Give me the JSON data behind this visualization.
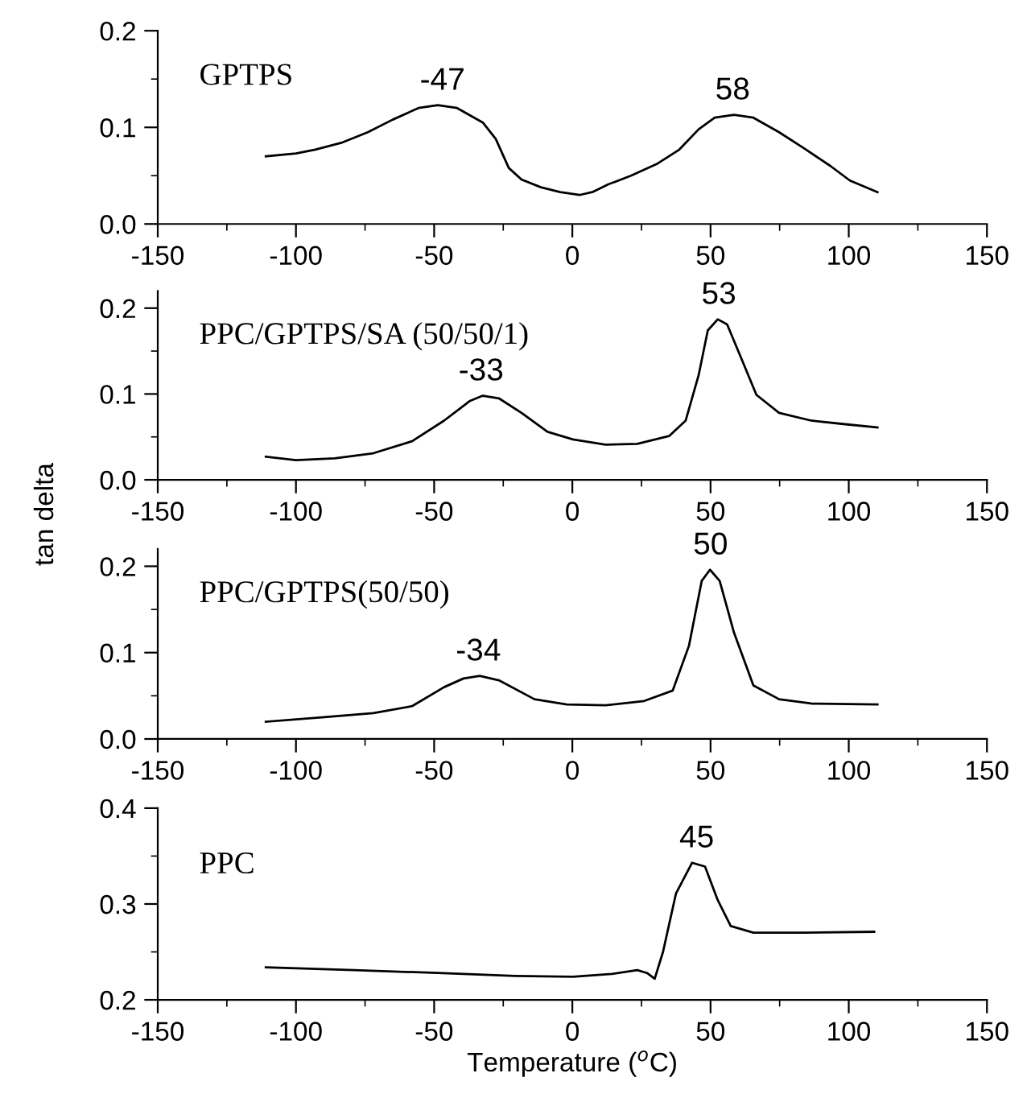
{
  "chart_data": [
    {
      "type": "line",
      "xlim": [
        -150,
        150
      ],
      "ylim": [
        0,
        0.2
      ],
      "xticks": [
        -150,
        {
          "value": -125,
          "label": null
        },
        -100,
        {
          "value": -75,
          "label": null
        },
        -50,
        {
          "value": -25,
          "label": null
        },
        0,
        {
          "value": 25,
          "label": null
        },
        50,
        {
          "value": 75,
          "label": null
        },
        100,
        {
          "value": 125,
          "label": null
        },
        150
      ],
      "yticks": [
        {
          "value": 0,
          "label": "0.0"
        },
        {
          "value": 0.05,
          "label": null
        },
        0.1,
        {
          "value": 0.15,
          "label": null
        },
        0.2
      ],
      "grid": false,
      "legend": false,
      "marker": "none",
      "line_style": "solid",
      "series": [
        {
          "name": "GPTPS",
          "color": "#000000",
          "x": [
            -110.9,
            -100,
            -93,
            -83.6,
            -74,
            -65,
            -55.7,
            -48.7,
            -41.7,
            -32.4,
            -27.7,
            -23,
            -18.4,
            -11.4,
            -4.4,
            2.6,
            7.2,
            13,
            21.2,
            30.5,
            38.7,
            45.7,
            51.5,
            58.5,
            65.5,
            74.8,
            84,
            93.4,
            100.4,
            110.4
          ],
          "values": [
            0.07,
            0.073,
            0.077,
            0.084,
            0.095,
            0.108,
            0.12,
            0.123,
            0.12,
            0.105,
            0.088,
            0.058,
            0.046,
            0.038,
            0.033,
            0.03,
            0.033,
            0.041,
            0.05,
            0.062,
            0.077,
            0.098,
            0.11,
            0.113,
            0.11,
            0.095,
            0.078,
            0.06,
            0.045,
            0.033
          ]
        }
      ],
      "annotations": [
        {
          "text": "-47",
          "x": -47,
          "y": 0.123
        },
        {
          "text": "58",
          "x": 58,
          "y": 0.113
        }
      ]
    },
    {
      "type": "line",
      "xlim": [
        -150,
        150
      ],
      "ylim": [
        0,
        0.22
      ],
      "xticks": [
        -150,
        {
          "value": -125,
          "label": null
        },
        -100,
        {
          "value": -75,
          "label": null
        },
        -50,
        {
          "value": -25,
          "label": null
        },
        0,
        {
          "value": 25,
          "label": null
        },
        50,
        {
          "value": 75,
          "label": null
        },
        100,
        {
          "value": 125,
          "label": null
        },
        150
      ],
      "yticks": [
        {
          "value": 0,
          "label": "0.0"
        },
        {
          "value": 0.05,
          "label": null
        },
        0.1,
        {
          "value": 0.15,
          "label": null
        },
        0.2
      ],
      "ylabel": "tan delta",
      "grid": false,
      "legend": false,
      "marker": "none",
      "line_style": "solid",
      "series": [
        {
          "name": "PPC/GPTPS/SA (50/50/1)",
          "color": "#000000",
          "x": [
            -110.9,
            -100,
            -86,
            -72,
            -58,
            -46.4,
            -37,
            -32.4,
            -26.6,
            -18.4,
            -9,
            0.2,
            12,
            23.5,
            35,
            41,
            45.7,
            49,
            52.6,
            56,
            60.8,
            66.6,
            74.8,
            86.4,
            98,
            110.4
          ],
          "values": [
            0.027,
            0.023,
            0.025,
            0.031,
            0.045,
            0.069,
            0.092,
            0.098,
            0.095,
            0.078,
            0.056,
            0.047,
            0.041,
            0.042,
            0.051,
            0.069,
            0.122,
            0.174,
            0.187,
            0.181,
            0.144,
            0.099,
            0.078,
            0.069,
            0.065,
            0.061
          ]
        }
      ],
      "annotations": [
        {
          "text": "-33",
          "x": -33,
          "y": 0.098
        },
        {
          "text": "53",
          "x": 53,
          "y": 0.187
        }
      ]
    },
    {
      "type": "line",
      "xlim": [
        -150,
        150
      ],
      "ylim": [
        0,
        0.22
      ],
      "xticks": [
        -150,
        {
          "value": -125,
          "label": null
        },
        -100,
        {
          "value": -75,
          "label": null
        },
        -50,
        {
          "value": -25,
          "label": null
        },
        0,
        {
          "value": 25,
          "label": null
        },
        50,
        {
          "value": 75,
          "label": null
        },
        100,
        {
          "value": 125,
          "label": null
        },
        150
      ],
      "yticks": [
        {
          "value": 0,
          "label": "0.0"
        },
        {
          "value": 0.05,
          "label": null
        },
        0.1,
        {
          "value": 0.15,
          "label": null
        },
        0.2
      ],
      "grid": false,
      "legend": false,
      "marker": "none",
      "line_style": "solid",
      "series": [
        {
          "name": "PPC/GPTPS(50/50)",
          "color": "#000000",
          "x": [
            -110.9,
            -90.6,
            -72,
            -58,
            -46.4,
            -39.4,
            -33.5,
            -26.6,
            -13.7,
            -2,
            12,
            26,
            36.3,
            42.2,
            46.8,
            49.8,
            53.3,
            58.5,
            65.5,
            74.8,
            86.4,
            110.4
          ],
          "values": [
            0.02,
            0.025,
            0.03,
            0.038,
            0.06,
            0.07,
            0.073,
            0.068,
            0.046,
            0.04,
            0.039,
            0.044,
            0.056,
            0.108,
            0.183,
            0.196,
            0.183,
            0.123,
            0.062,
            0.046,
            0.041,
            0.04
          ]
        }
      ],
      "annotations": [
        {
          "text": "-34",
          "x": -34,
          "y": 0.073
        },
        {
          "text": "50",
          "x": 50,
          "y": 0.196
        }
      ]
    },
    {
      "type": "line",
      "xlim": [
        -150,
        150
      ],
      "ylim": [
        0.2,
        0.4
      ],
      "xticks": [
        -150,
        {
          "value": -125,
          "label": null
        },
        -100,
        {
          "value": -75,
          "label": null
        },
        -50,
        {
          "value": -25,
          "label": null
        },
        0,
        {
          "value": 25,
          "label": null
        },
        50,
        {
          "value": 75,
          "label": null
        },
        100,
        {
          "value": 125,
          "label": null
        },
        150
      ],
      "yticks": [
        0.2,
        {
          "value": 0.25,
          "label": null
        },
        0.3,
        {
          "value": 0.35,
          "label": null
        },
        0.4
      ],
      "xlabel": "Temperature ($^{o}$C)",
      "grid": false,
      "legend": false,
      "marker": "none",
      "line_style": "solid",
      "series": [
        {
          "name": "PPC",
          "color": "#000000",
          "x": [
            -110.9,
            -79,
            -48.7,
            -20.7,
            0.2,
            14.2,
            23.5,
            27,
            29.8,
            32.8,
            37.5,
            43.3,
            48,
            52.6,
            57.3,
            65.5,
            84,
            109.2
          ],
          "values": [
            0.234,
            0.231,
            0.228,
            0.225,
            0.224,
            0.227,
            0.231,
            0.228,
            0.222,
            0.25,
            0.311,
            0.343,
            0.339,
            0.304,
            0.277,
            0.27,
            0.27,
            0.271
          ]
        }
      ],
      "annotations": [
        {
          "text": "45",
          "x": 45,
          "y": 0.343
        }
      ]
    }
  ]
}
